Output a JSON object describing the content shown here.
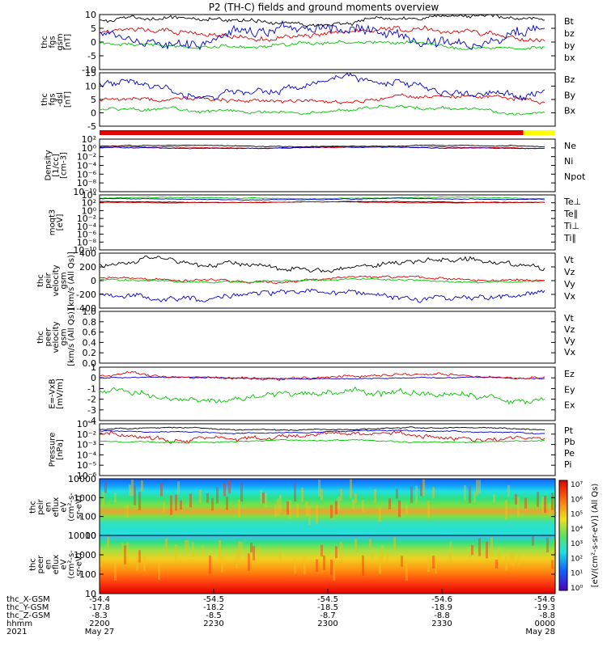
{
  "title": "P2 (TH-C) fields and ground moments overview",
  "colors": {
    "black": "#000000",
    "red": "#e00000",
    "green": "#00c800",
    "blue": "#0000d0",
    "yellow": "#ffff00"
  },
  "chart_data": [
    {
      "type": "line",
      "ylabel": [
        "thc",
        "fgs",
        "gsm",
        "[nT]"
      ],
      "yticks": [
        "10",
        "5",
        "0",
        "-5",
        "-10"
      ],
      "ylim": [
        -10,
        10
      ],
      "legend": [
        {
          "name": "Bt",
          "color": "black"
        },
        {
          "name": "bz",
          "color": "red"
        },
        {
          "name": "by",
          "color": "green"
        },
        {
          "name": "bx",
          "color": "blue"
        }
      ],
      "series": [
        {
          "name": "Bt",
          "color": "black",
          "base": 8,
          "amp": 2.5
        },
        {
          "name": "bz",
          "color": "red",
          "base": 3,
          "amp": 3
        },
        {
          "name": "by",
          "color": "green",
          "base": -1,
          "amp": 2
        },
        {
          "name": "bx",
          "color": "blue",
          "base": 3,
          "amp": 6
        }
      ]
    },
    {
      "type": "line",
      "ylabel": [
        "thc",
        "fgs",
        "-dsl",
        "[nT]"
      ],
      "yticks": [
        "15",
        "10",
        "5",
        "0",
        "-5"
      ],
      "ylim": [
        -7,
        17
      ],
      "legend": [
        {
          "name": "Bz",
          "color": "red"
        },
        {
          "name": "By",
          "color": "green"
        },
        {
          "name": "Bx",
          "color": "blue"
        }
      ],
      "series": [
        {
          "name": "Bz",
          "color": "red",
          "base": 5,
          "amp": 3
        },
        {
          "name": "By",
          "color": "green",
          "base": 0,
          "amp": 2.5
        },
        {
          "name": "Bx",
          "color": "blue",
          "base": 10,
          "amp": 5
        }
      ]
    },
    {
      "type": "bar-strip",
      "ylabel": [],
      "segments": [
        {
          "color": "red",
          "from": 0,
          "to": 0.93
        },
        {
          "color": "yellow",
          "from": 0.93,
          "to": 1
        }
      ]
    },
    {
      "type": "line",
      "ylabel": [
        "Density",
        "[1/cc]",
        "[cm-3]"
      ],
      "yticks": [
        "10²",
        "10⁰",
        "10⁻²",
        "10⁻⁴",
        "10⁻⁶",
        "10⁻⁸",
        "10⁻¹⁰"
      ],
      "ylim": [
        -10,
        2
      ],
      "legend": [
        {
          "name": "Ne",
          "color": "red"
        },
        {
          "name": "Ni",
          "color": "black"
        },
        {
          "name": "Npot",
          "color": "blue"
        }
      ],
      "series": [
        {
          "name": "Ni",
          "color": "black",
          "base": 0.4,
          "amp": 0.3
        },
        {
          "name": "Ne",
          "color": "red",
          "base": 0.1,
          "amp": 0.3
        },
        {
          "name": "Npot",
          "color": "blue",
          "base": 0.0,
          "amp": 0.3
        }
      ]
    },
    {
      "type": "line",
      "ylabel": [
        "moqt3",
        "[eV]"
      ],
      "yticks": [
        "10⁴",
        "10²",
        "10⁰",
        "10⁻²",
        "10⁻⁴",
        "10⁻⁶",
        "10⁻⁸",
        "10⁻¹⁰"
      ],
      "ylim": [
        -10,
        4
      ],
      "legend": [
        {
          "name": "Te⊥",
          "color": "red"
        },
        {
          "name": "Te∥",
          "color": "black"
        },
        {
          "name": "Ti⊥",
          "color": "blue"
        },
        {
          "name": "Ti∥",
          "color": "green"
        }
      ],
      "series": [
        {
          "name": "Ti∥",
          "color": "green",
          "base": 3.2,
          "amp": 0.3
        },
        {
          "name": "Ti⊥",
          "color": "blue",
          "base": 2.9,
          "amp": 0.3
        },
        {
          "name": "Te∥",
          "color": "black",
          "base": 2.2,
          "amp": 0.2
        },
        {
          "name": "Te⊥",
          "color": "red",
          "base": 2.1,
          "amp": 0.2
        }
      ]
    },
    {
      "type": "line",
      "ylabel": [
        "thc",
        "peir",
        "velocity",
        "gsm",
        "[km/s (All Qs)]"
      ],
      "yticks": [
        "400",
        "200",
        "0",
        "-200",
        "-400"
      ],
      "ylim": [
        -400,
        400
      ],
      "legend": [
        {
          "name": "Vt",
          "color": "black"
        },
        {
          "name": "Vz",
          "color": "red"
        },
        {
          "name": "Vy",
          "color": "green"
        },
        {
          "name": "Vx",
          "color": "blue"
        }
      ],
      "series": [
        {
          "name": "Vt",
          "color": "black",
          "base": 230,
          "amp": 120
        },
        {
          "name": "Vz",
          "color": "red",
          "base": 20,
          "amp": 60
        },
        {
          "name": "Vy",
          "color": "green",
          "base": 0,
          "amp": 40
        },
        {
          "name": "Vx",
          "color": "blue",
          "base": -200,
          "amp": 120
        }
      ]
    },
    {
      "type": "line",
      "ylabel": [
        "thc",
        "peer",
        "velocity",
        "gsm",
        "[km/s (All Qs)]"
      ],
      "yticks": [
        "1.0",
        "0.8",
        "0.6",
        "0.4",
        "0.2",
        "0.0"
      ],
      "ylim": [
        0,
        1
      ],
      "legend": [
        {
          "name": "Vt",
          "color": "black"
        },
        {
          "name": "Vz",
          "color": "red"
        },
        {
          "name": "Vy",
          "color": "green"
        },
        {
          "name": "Vx",
          "color": "blue"
        }
      ],
      "series": []
    },
    {
      "type": "line",
      "ylabel": [
        "E=-VxB",
        "[mV/m]"
      ],
      "yticks": [
        "1",
        "0",
        "-1",
        "-2",
        "-3",
        "-4"
      ],
      "ylim": [
        -4,
        1
      ],
      "legend": [
        {
          "name": "Ez",
          "color": "red"
        },
        {
          "name": "Ey",
          "color": "green"
        },
        {
          "name": "Ex",
          "color": "blue"
        }
      ],
      "series": [
        {
          "name": "Ex",
          "color": "blue",
          "base": 0,
          "amp": 0.15
        },
        {
          "name": "Ez",
          "color": "red",
          "base": 0.1,
          "amp": 0.4
        },
        {
          "name": "Ey",
          "color": "green",
          "base": -1.6,
          "amp": 0.9
        }
      ]
    },
    {
      "type": "line",
      "ylabel": [
        "Pressure",
        "[nPa]"
      ],
      "yticks": [
        "10⁻¹",
        "10⁻²",
        "10⁻³",
        "10⁻⁴",
        "10⁻⁵",
        "10⁻⁶"
      ],
      "ylim": [
        -6,
        -1
      ],
      "legend": [
        {
          "name": "Pt",
          "color": "black"
        },
        {
          "name": "Pb",
          "color": "red"
        },
        {
          "name": "Pe",
          "color": "green"
        },
        {
          "name": "Pi",
          "color": "blue"
        }
      ],
      "series": [
        {
          "name": "Pt",
          "color": "black",
          "base": -1.5,
          "amp": 0.2
        },
        {
          "name": "Pi",
          "color": "blue",
          "base": -1.8,
          "amp": 0.2
        },
        {
          "name": "Pb",
          "color": "red",
          "base": -2.2,
          "amp": 0.7
        },
        {
          "name": "Pe",
          "color": "green",
          "base": -2.7,
          "amp": 0.2
        }
      ]
    },
    {
      "type": "heatmap",
      "ylabel": [
        "thc",
        "peir",
        "en",
        "eflux",
        "eV",
        "(cm²-s-",
        "sr-eV)"
      ],
      "yticks": [
        "10000",
        "1000",
        "100",
        "10"
      ],
      "ylim": [
        5,
        20000
      ],
      "rows": [
        {
          "f": 0.0,
          "c": "#1060ff"
        },
        {
          "f": 0.12,
          "c": "#10a0ff"
        },
        {
          "f": 0.22,
          "c": "#20e0e0"
        },
        {
          "f": 0.35,
          "c": "#30e080"
        },
        {
          "f": 0.48,
          "c": "#80e040"
        },
        {
          "f": 0.58,
          "c": "#f0a030"
        },
        {
          "f": 0.66,
          "c": "#80e040"
        },
        {
          "f": 0.78,
          "c": "#30e0c0"
        },
        {
          "f": 1.0,
          "c": "#20e0e0"
        }
      ]
    },
    {
      "type": "heatmap",
      "ylabel": [
        "thc",
        "peer",
        "en",
        "eflux",
        "eV",
        "(cm²-s-",
        "sr-eV)"
      ],
      "yticks": [
        "10000",
        "1000",
        "100",
        "10"
      ],
      "ylim": [
        5,
        20000
      ],
      "rows": [
        {
          "f": 0.0,
          "c": "#30c0ff"
        },
        {
          "f": 0.12,
          "c": "#30e080"
        },
        {
          "f": 0.25,
          "c": "#a0e040"
        },
        {
          "f": 0.4,
          "c": "#f0d020"
        },
        {
          "f": 0.6,
          "c": "#ff9010"
        },
        {
          "f": 0.8,
          "c": "#ff4010"
        },
        {
          "f": 1.0,
          "c": "#e00000"
        }
      ]
    }
  ],
  "colorbar": {
    "label": "[eV/(cm²-s-sr-eV)] (All Qs)",
    "ticks": [
      "10⁷",
      "10⁶",
      "10⁵",
      "10⁴",
      "10³",
      "10²",
      "10¹",
      "10⁰"
    ]
  },
  "xaxis": {
    "rows": [
      {
        "label": "thc_X-GSM",
        "values": [
          "-54.4",
          "-54.5",
          "-54.5",
          "-54.6",
          "-54.6"
        ]
      },
      {
        "label": "thc_Y-GSM",
        "values": [
          "-17.8",
          "-18.2",
          "-18.5",
          "-18.9",
          "-19.3"
        ]
      },
      {
        "label": "thc_Z-GSM",
        "values": [
          "-8.3",
          "-8.5",
          "-8.7",
          "-8.8",
          "-8.8"
        ]
      },
      {
        "label": "hhmm",
        "values": [
          "2200",
          "2230",
          "2300",
          "2330",
          "0000"
        ]
      },
      {
        "label": "2021",
        "values": [
          "May 27",
          "",
          "",
          "",
          "May 28"
        ]
      }
    ]
  }
}
